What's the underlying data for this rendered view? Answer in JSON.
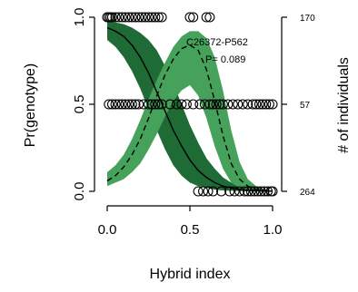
{
  "chart_data": {
    "type": "line",
    "title": "",
    "annotation": {
      "marker": "C26372-P562",
      "p_value": "P= 0.089"
    },
    "xlabel": "Hybrid index",
    "ylabel": "Pr(genotype)",
    "y2label": "# of individuals",
    "xlim": [
      0,
      1
    ],
    "ylim": [
      0,
      1
    ],
    "x_ticks": [
      "0.0",
      "0.5",
      "1.0"
    ],
    "y_ticks": [
      "0.0",
      "0.5",
      "1.0"
    ],
    "y2_ticks": [
      "264",
      "57",
      "170"
    ],
    "grid": false,
    "legend": "none",
    "colors": {
      "dark_band": "#1f6b35",
      "light_band": "#46a25a",
      "curve": "#000000",
      "points": "#000000"
    },
    "series": [
      {
        "style": "solid",
        "band": "dark",
        "x": [
          0.0,
          0.05,
          0.1,
          0.15,
          0.2,
          0.25,
          0.3,
          0.35,
          0.4,
          0.45,
          0.5,
          0.55,
          0.6,
          0.65,
          0.7,
          0.75,
          0.8,
          0.85,
          0.9,
          0.95,
          1.0
        ],
        "y": [
          0.94,
          0.92,
          0.89,
          0.84,
          0.77,
          0.68,
          0.57,
          0.46,
          0.35,
          0.26,
          0.18,
          0.12,
          0.08,
          0.05,
          0.03,
          0.02,
          0.01,
          0.005,
          0.003,
          0.002,
          0.001
        ],
        "lower": [
          0.87,
          0.83,
          0.77,
          0.69,
          0.59,
          0.47,
          0.35,
          0.24,
          0.15,
          0.09,
          0.05,
          0.03,
          0.02,
          0.01,
          0.005,
          0.003,
          0.002,
          0.001,
          0.0,
          0.0,
          0.0
        ],
        "upper": [
          0.98,
          0.97,
          0.96,
          0.94,
          0.91,
          0.87,
          0.81,
          0.72,
          0.62,
          0.5,
          0.38,
          0.28,
          0.19,
          0.13,
          0.08,
          0.05,
          0.03,
          0.02,
          0.01,
          0.005,
          0.003
        ]
      },
      {
        "style": "dashed",
        "band": "light",
        "x": [
          0.0,
          0.05,
          0.1,
          0.15,
          0.2,
          0.25,
          0.3,
          0.35,
          0.4,
          0.45,
          0.5,
          0.55,
          0.6,
          0.65,
          0.7,
          0.75,
          0.8,
          0.85,
          0.9,
          0.95,
          1.0
        ],
        "y": [
          0.06,
          0.09,
          0.14,
          0.21,
          0.3,
          0.42,
          0.55,
          0.67,
          0.76,
          0.82,
          0.84,
          0.81,
          0.7,
          0.52,
          0.32,
          0.16,
          0.07,
          0.03,
          0.01,
          0.005,
          0.002
        ],
        "lower": [
          0.03,
          0.05,
          0.07,
          0.11,
          0.16,
          0.24,
          0.33,
          0.43,
          0.52,
          0.58,
          0.61,
          0.55,
          0.42,
          0.26,
          0.13,
          0.05,
          0.02,
          0.01,
          0.0,
          0.0,
          0.0
        ],
        "upper": [
          0.11,
          0.15,
          0.21,
          0.3,
          0.41,
          0.53,
          0.64,
          0.74,
          0.83,
          0.89,
          0.92,
          0.92,
          0.88,
          0.77,
          0.58,
          0.35,
          0.17,
          0.07,
          0.03,
          0.01,
          0.005
        ]
      }
    ],
    "points": [
      {
        "x": 0.0,
        "y": 1
      },
      {
        "x": 0.01,
        "y": 1
      },
      {
        "x": 0.02,
        "y": 1
      },
      {
        "x": 0.03,
        "y": 1
      },
      {
        "x": 0.05,
        "y": 1
      },
      {
        "x": 0.07,
        "y": 1
      },
      {
        "x": 0.09,
        "y": 1
      },
      {
        "x": 0.11,
        "y": 1
      },
      {
        "x": 0.13,
        "y": 1
      },
      {
        "x": 0.15,
        "y": 1
      },
      {
        "x": 0.17,
        "y": 1
      },
      {
        "x": 0.19,
        "y": 1
      },
      {
        "x": 0.21,
        "y": 1
      },
      {
        "x": 0.23,
        "y": 1
      },
      {
        "x": 0.25,
        "y": 1
      },
      {
        "x": 0.27,
        "y": 1
      },
      {
        "x": 0.29,
        "y": 1
      },
      {
        "x": 0.31,
        "y": 1
      },
      {
        "x": 0.33,
        "y": 1
      },
      {
        "x": 0.5,
        "y": 1
      },
      {
        "x": 0.52,
        "y": 1
      },
      {
        "x": 0.6,
        "y": 1
      },
      {
        "x": 0.62,
        "y": 1
      },
      {
        "x": 0.01,
        "y": 0.5
      },
      {
        "x": 0.03,
        "y": 0.5
      },
      {
        "x": 0.05,
        "y": 0.5
      },
      {
        "x": 0.07,
        "y": 0.5
      },
      {
        "x": 0.09,
        "y": 0.5
      },
      {
        "x": 0.11,
        "y": 0.5
      },
      {
        "x": 0.13,
        "y": 0.5
      },
      {
        "x": 0.15,
        "y": 0.5
      },
      {
        "x": 0.17,
        "y": 0.5
      },
      {
        "x": 0.19,
        "y": 0.5
      },
      {
        "x": 0.22,
        "y": 0.5
      },
      {
        "x": 0.25,
        "y": 0.5
      },
      {
        "x": 0.27,
        "y": 0.5
      },
      {
        "x": 0.29,
        "y": 0.5
      },
      {
        "x": 0.31,
        "y": 0.5
      },
      {
        "x": 0.33,
        "y": 0.5
      },
      {
        "x": 0.38,
        "y": 0.5
      },
      {
        "x": 0.42,
        "y": 0.5
      },
      {
        "x": 0.45,
        "y": 0.5
      },
      {
        "x": 0.48,
        "y": 0.5
      },
      {
        "x": 0.52,
        "y": 0.5
      },
      {
        "x": 0.56,
        "y": 0.5
      },
      {
        "x": 0.59,
        "y": 0.5
      },
      {
        "x": 0.62,
        "y": 0.5
      },
      {
        "x": 0.64,
        "y": 0.5
      },
      {
        "x": 0.66,
        "y": 0.5
      },
      {
        "x": 0.68,
        "y": 0.5
      },
      {
        "x": 0.7,
        "y": 0.5
      },
      {
        "x": 0.73,
        "y": 0.5
      },
      {
        "x": 0.76,
        "y": 0.5
      },
      {
        "x": 0.79,
        "y": 0.5
      },
      {
        "x": 0.82,
        "y": 0.5
      },
      {
        "x": 0.85,
        "y": 0.5
      },
      {
        "x": 0.88,
        "y": 0.5
      },
      {
        "x": 0.9,
        "y": 0.5
      },
      {
        "x": 0.92,
        "y": 0.5
      },
      {
        "x": 0.94,
        "y": 0.5
      },
      {
        "x": 0.96,
        "y": 0.5
      },
      {
        "x": 0.98,
        "y": 0.5
      },
      {
        "x": 1.0,
        "y": 0.5
      },
      {
        "x": 0.55,
        "y": 0
      },
      {
        "x": 0.58,
        "y": 0
      },
      {
        "x": 0.61,
        "y": 0
      },
      {
        "x": 0.64,
        "y": 0
      },
      {
        "x": 0.69,
        "y": 0
      },
      {
        "x": 0.74,
        "y": 0
      },
      {
        "x": 0.77,
        "y": 0
      },
      {
        "x": 0.8,
        "y": 0
      },
      {
        "x": 0.83,
        "y": 0
      },
      {
        "x": 0.85,
        "y": 0
      },
      {
        "x": 0.87,
        "y": 0
      },
      {
        "x": 0.89,
        "y": 0
      },
      {
        "x": 0.91,
        "y": 0
      },
      {
        "x": 0.93,
        "y": 0
      },
      {
        "x": 0.95,
        "y": 0
      },
      {
        "x": 0.97,
        "y": 0
      },
      {
        "x": 0.99,
        "y": 0
      },
      {
        "x": 1.0,
        "y": 0
      }
    ]
  }
}
